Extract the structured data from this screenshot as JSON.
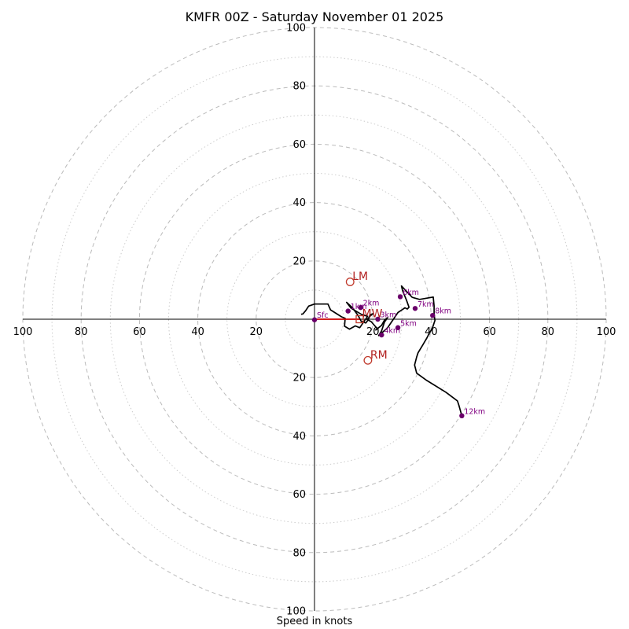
{
  "chart_data": {
    "type": "hodograph",
    "title": "KMFR 00Z - Saturday November 01 2025",
    "xlabel": "Speed in knots",
    "units": "knots",
    "max_range": 100,
    "major_rings": [
      20,
      40,
      60,
      80,
      100
    ],
    "minor_rings": [
      10,
      30,
      50,
      70,
      90
    ],
    "tick_labels": {
      "x_left": [
        "100",
        "80",
        "60",
        "40",
        "20"
      ],
      "x_right": [
        "20",
        "40",
        "60",
        "80",
        "100"
      ],
      "y_top": [
        "100",
        "80",
        "60",
        "40",
        "20"
      ],
      "y_bottom": [
        "20",
        "40",
        "60",
        "80",
        "100"
      ]
    },
    "hodograph": {
      "u": [
        -4.6,
        -4,
        -3,
        -2,
        0,
        4.6,
        5.5,
        9.3,
        10.5,
        10.3,
        12,
        14,
        15.5,
        18.2,
        16,
        12.5,
        11,
        13,
        15,
        16,
        17.6,
        18.5,
        19,
        20,
        19,
        18,
        19.4,
        21.5,
        21,
        23,
        24,
        25,
        24,
        23,
        22.5,
        22,
        25,
        28.6,
        31,
        31.8,
        32.4,
        31.6,
        30.2,
        29.8,
        31.3,
        33.5,
        36,
        40.7,
        41,
        41,
        41.3,
        40.6,
        40,
        39.5,
        38.5,
        37,
        35.5,
        35,
        34.3,
        35,
        38.5,
        45,
        49,
        49.5,
        50.5
      ],
      "v": [
        -1.7,
        -1.8,
        -3,
        -4.5,
        -5.2,
        -5.2,
        -3.2,
        -0.8,
        -0.3,
        2.4,
        3.4,
        2.3,
        2.9,
        -1.0,
        -1.7,
        -3.8,
        -5.8,
        -4.0,
        -1.2,
        0.7,
        1.3,
        0.1,
        -1.5,
        -1.9,
        -1.0,
        0.1,
        0.8,
        3.2,
        3.7,
        2.1,
        0.3,
        -0.5,
        1.0,
        4.0,
        4.8,
        5.6,
        3.0,
        -2.3,
        -3.9,
        -3.5,
        -4.1,
        -6.4,
        -9.8,
        -11.4,
        -9.8,
        -7.5,
        -6.8,
        -7.6,
        -4.6,
        -1.6,
        0.4,
        2.5,
        3.8,
        4.5,
        6.5,
        9.0,
        11.5,
        13.0,
        15.7,
        18.5,
        21.0,
        25.0,
        28.0,
        29.5,
        33.1
      ]
    },
    "height_markers": [
      {
        "label": "Sfc",
        "u": 0,
        "v": 0.2
      },
      {
        "label": "1km",
        "u": 11.5,
        "v": -2.8
      },
      {
        "label": "2km",
        "u": 15.8,
        "v": -4.0
      },
      {
        "label": "3km",
        "u": 21.7,
        "v": 0
      },
      {
        "label": "4km",
        "u": 23,
        "v": 5.4
      },
      {
        "label": "5km",
        "u": 28.6,
        "v": 2.9
      },
      {
        "label": "6km",
        "u": 29.4,
        "v": -7.7
      },
      {
        "label": "7km",
        "u": 34.5,
        "v": -3.7
      },
      {
        "label": "8km",
        "u": 40.5,
        "v": -1.3
      },
      {
        "label": "12km",
        "u": 50.5,
        "v": 33.1
      }
    ],
    "shear_vector": {
      "from_u": 0,
      "from_v": 0,
      "to_u": 15.5,
      "to_v": 0
    },
    "storm_motion": [
      {
        "label": "LM",
        "u": 12.2,
        "v": -12.8,
        "shape": "circle"
      },
      {
        "label": "MW",
        "u": 15.5,
        "v": 0,
        "shape": "square"
      },
      {
        "label": "RM",
        "u": 18.3,
        "v": 14.1,
        "shape": "circle"
      }
    ]
  }
}
